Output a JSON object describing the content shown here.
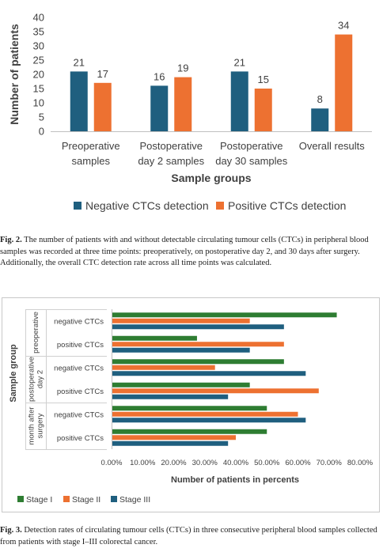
{
  "chart_data": [
    {
      "type": "bar",
      "title": "",
      "xlabel": "Sample groups",
      "ylabel": "Number of patients",
      "categories": [
        [
          "Preoperative",
          "samples"
        ],
        [
          "Postoperative",
          "day  2 samples"
        ],
        [
          "Postoperative",
          "day 30 samples"
        ],
        [
          "Overall results"
        ]
      ],
      "series": [
        {
          "name": "Negative CTCs detection",
          "values": [
            21,
            16,
            21,
            8
          ],
          "color": "#1f5f7f"
        },
        {
          "name": "Positive CTCs detection",
          "values": [
            17,
            19,
            15,
            34
          ],
          "color": "#ed7131"
        }
      ],
      "ylim": [
        0,
        40
      ],
      "yticks": [
        "0",
        "5",
        "10",
        "15",
        "20",
        "25",
        "30",
        "35",
        "40"
      ],
      "grid": false,
      "legend": "bottom"
    },
    {
      "type": "bar",
      "orientation": "horizontal",
      "title": "",
      "xlabel": "Number of patients in percents",
      "ylabel": "Sample group",
      "groups": [
        {
          "label": [
            "preoperative"
          ],
          "rows": [
            "negative CTCs",
            "positive CTCs"
          ]
        },
        {
          "label": [
            "postoperative",
            "day 2"
          ],
          "rows": [
            "negative CTCs",
            "positive CTCs"
          ]
        },
        {
          "label": [
            "month after",
            "surgery"
          ],
          "rows": [
            "negative CTCs",
            "positive CTCs"
          ]
        }
      ],
      "series": [
        {
          "name": "Stage I",
          "values": [
            72.5,
            27.5,
            55.5,
            44.5,
            50,
            50
          ],
          "color": "#2e7d32"
        },
        {
          "name": "Stage II",
          "values": [
            44.5,
            55.5,
            33.3,
            66.7,
            60,
            40
          ],
          "color": "#ed7131"
        },
        {
          "name": "Stage III",
          "values": [
            55.5,
            44.5,
            62.5,
            37.5,
            62.5,
            37.5
          ],
          "color": "#1f5f7f"
        }
      ],
      "xlim": [
        0,
        80
      ],
      "xticks": [
        "0.00%",
        "10.00%",
        "20.00%",
        "30.00%",
        "40.00%",
        "50.00%",
        "60.00%",
        "70.00%",
        "80.00%"
      ],
      "grid": false,
      "legend": "bottom-left"
    }
  ],
  "captions": {
    "fig2_label": "Fig. 2.",
    "fig2_text": " The number of patients with and without detectable circulating tumour cells (CTCs) in peripheral blood samples was recorded at three time points: preoperatively, on postoperative day 2, and 30 days after surgery. Additionally, the overall CTC detection rate across all time points was calculated.",
    "fig3_label": "Fig. 3.",
    "fig3_text": " Detection rates of circulating tumour cells (CTCs) in three consecutive peripheral blood samples collected from patients with stage I–III colorectal cancer."
  }
}
